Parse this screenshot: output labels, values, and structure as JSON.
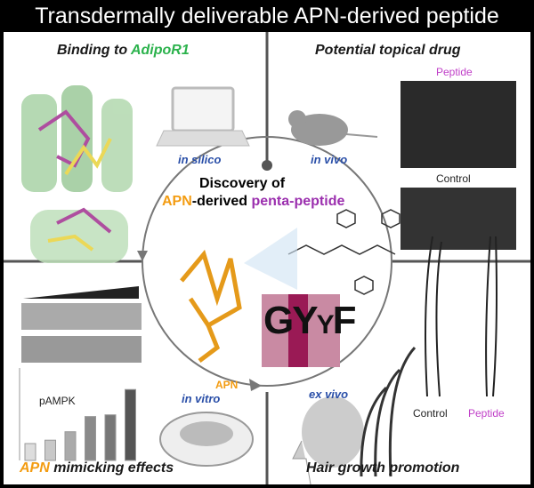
{
  "title": "Transdermally deliverable APN-derived peptide",
  "binding": {
    "prefix": "Binding to ",
    "receptor": "AdipoR1",
    "method": "in silico"
  },
  "topical": {
    "heading": "Potential topical drug",
    "method": "in vivo",
    "peptide_label": "Peptide",
    "control_label": "Control"
  },
  "center": {
    "line1": "Discovery of",
    "apn": "APN",
    "mid": "-derived ",
    "penta": "penta-peptide",
    "protein_label": "APN",
    "logo_letters": [
      "G",
      "Y",
      "Y",
      "F"
    ]
  },
  "mimicking": {
    "apn": "APN",
    "rest": " mimicking effects",
    "method": "in vitro",
    "chart_label": "pAMPK",
    "bar_values": [
      1.0,
      1.2,
      1.7,
      2.6,
      2.7,
      4.2
    ]
  },
  "hair": {
    "heading": "Hair growth promotion",
    "method": "ex vivo",
    "control_label": "Control",
    "peptide_label": "Peptide"
  },
  "colors": {
    "green": "#2bb24c",
    "orange": "#f39c12",
    "purple": "#9b2fae",
    "blue": "#2a4fa8",
    "pink": "#c03fc8"
  }
}
